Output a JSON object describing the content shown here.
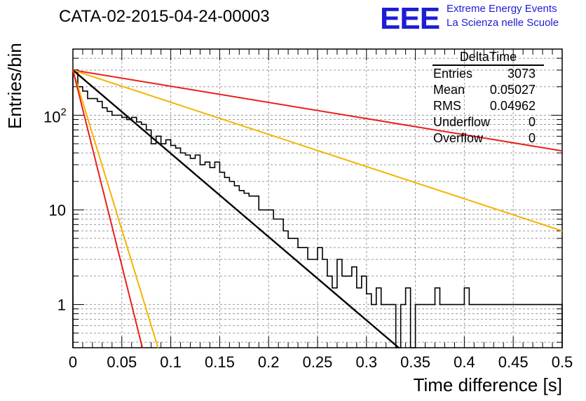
{
  "header": {
    "title": "CATA-02-2015-04-24-00003",
    "logo_mark": "EEE",
    "logo_line1": "Extreme Energy Events",
    "logo_line2": "La Scienza nelle Scuole"
  },
  "stats_box": {
    "title": "DeltaTime",
    "rows": [
      {
        "label": "Entries",
        "value": "3073"
      },
      {
        "label": "Mean",
        "value": "0.05027"
      },
      {
        "label": "RMS",
        "value": "0.04962"
      },
      {
        "label": "Underflow",
        "value": "0"
      },
      {
        "label": "Overflow",
        "value": "0"
      }
    ]
  },
  "chart_data": {
    "type": "line",
    "title": "CATA-02-2015-04-24-00003",
    "xlabel": "Time difference [s]",
    "ylabel": "Entries/bin",
    "xlim": [
      0,
      0.5
    ],
    "ylim": [
      0.35,
      500
    ],
    "yscale": "log",
    "grid": true,
    "x_ticks": [
      "0",
      "0.05",
      "0.1",
      "0.15",
      "0.2",
      "0.25",
      "0.3",
      "0.35",
      "0.4",
      "0.45",
      "0.5"
    ],
    "y_ticks": [
      "1",
      "10",
      "10^2"
    ],
    "histogram": {
      "bin_width": 0.005,
      "values": [
        300,
        200,
        180,
        150,
        150,
        140,
        120,
        110,
        100,
        100,
        95,
        90,
        95,
        85,
        80,
        70,
        50,
        60,
        50,
        55,
        48,
        45,
        40,
        38,
        35,
        38,
        30,
        32,
        28,
        32,
        25,
        22,
        20,
        18,
        16,
        15,
        14,
        14,
        10,
        10,
        10,
        8,
        8,
        6,
        5,
        5,
        4,
        4,
        3,
        3,
        4,
        3,
        2,
        1.5,
        3,
        2,
        2,
        2.5,
        1.5,
        2,
        1.3,
        1,
        1.5,
        1,
        1,
        1,
        0,
        1,
        1.5,
        0,
        1,
        1,
        1,
        1,
        1.5,
        1,
        1,
        1,
        1,
        1,
        1.5,
        1,
        1,
        1,
        1,
        1,
        1,
        1,
        1,
        1,
        1,
        1,
        1,
        1,
        1,
        1,
        1,
        1,
        1,
        1
      ]
    },
    "series": [
      {
        "color": "#e8201a",
        "points": [
          [
            0,
            300
          ],
          [
            0.5,
            42
          ]
        ]
      },
      {
        "color": "#f5b400",
        "points": [
          [
            0,
            300
          ],
          [
            0.5,
            6
          ]
        ]
      },
      {
        "color": "#000000",
        "points": [
          [
            0,
            300
          ],
          [
            0.333,
            0.35
          ]
        ]
      },
      {
        "color": "#f5b400",
        "points": [
          [
            0,
            300
          ],
          [
            0.087,
            0.35
          ]
        ]
      },
      {
        "color": "#e8201a",
        "points": [
          [
            0,
            300
          ],
          [
            0.071,
            0.35
          ]
        ]
      }
    ]
  }
}
